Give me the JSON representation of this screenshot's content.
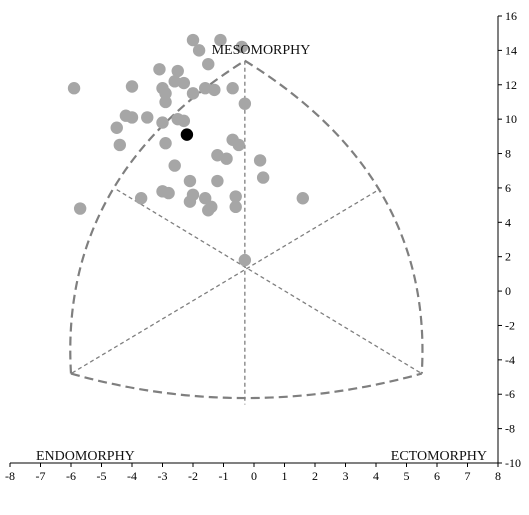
{
  "chart_data": {
    "type": "scatter",
    "title": "",
    "xlabel": "",
    "ylabel": "",
    "xlim": [
      -8,
      8
    ],
    "ylim": [
      -10,
      16
    ],
    "x_ticks": [
      -8,
      -7,
      -6,
      -5,
      -4,
      -3,
      -2,
      -1,
      0,
      1,
      2,
      3,
      4,
      5,
      6,
      7,
      8
    ],
    "y_ticks": [
      -10,
      -8,
      -6,
      -4,
      -2,
      0,
      2,
      4,
      6,
      8,
      10,
      12,
      14,
      16
    ],
    "grid": false,
    "legend": "none",
    "region_labels": {
      "top": "MESOMORPHY",
      "left": "ENDOMORPHY",
      "right": "ECTOMORPHY"
    },
    "somatochart": {
      "vertices": {
        "top": [
          -0.3,
          13.4
        ],
        "left": [
          -6.0,
          -4.8
        ],
        "right": [
          5.5,
          -4.8
        ]
      },
      "center": [
        -0.3,
        1.3
      ],
      "bottom": [
        -0.3,
        -6.6
      ],
      "upper_left": [
        -4.5,
        5.9
      ],
      "upper_right": [
        4.0,
        5.8
      ],
      "outline_color": "#7f7f7f",
      "divider_color": "#7f7f7f"
    },
    "series": [
      {
        "color": "#a6a6a6",
        "points": [
          [
            -2.0,
            14.6
          ],
          [
            -1.1,
            14.6
          ],
          [
            -1.8,
            14.0
          ],
          [
            -0.4,
            14.2
          ],
          [
            -1.5,
            13.2
          ],
          [
            -3.1,
            12.9
          ],
          [
            -2.5,
            12.8
          ],
          [
            -5.9,
            11.8
          ],
          [
            -4.0,
            11.9
          ],
          [
            -3.0,
            11.8
          ],
          [
            -2.6,
            12.2
          ],
          [
            -2.3,
            12.1
          ],
          [
            -2.9,
            11.5
          ],
          [
            -1.6,
            11.8
          ],
          [
            -1.3,
            11.7
          ],
          [
            -0.7,
            11.8
          ],
          [
            -2.0,
            11.5
          ],
          [
            -0.3,
            10.9
          ],
          [
            -2.9,
            11.0
          ],
          [
            -4.2,
            10.2
          ],
          [
            -4.0,
            10.1
          ],
          [
            -3.5,
            10.1
          ],
          [
            -2.5,
            10.0
          ],
          [
            -2.3,
            9.9
          ],
          [
            -3.0,
            9.8
          ],
          [
            -4.5,
            9.5
          ],
          [
            -0.7,
            8.8
          ],
          [
            -0.5,
            8.5
          ],
          [
            -4.4,
            8.5
          ],
          [
            -2.9,
            8.6
          ],
          [
            -1.2,
            7.9
          ],
          [
            -0.9,
            7.7
          ],
          [
            0.2,
            7.6
          ],
          [
            -2.6,
            7.3
          ],
          [
            0.3,
            6.6
          ],
          [
            -2.1,
            6.4
          ],
          [
            -1.2,
            6.4
          ],
          [
            -5.7,
            4.8
          ],
          [
            -3.7,
            5.4
          ],
          [
            -3.0,
            5.8
          ],
          [
            -2.8,
            5.7
          ],
          [
            -2.0,
            5.6
          ],
          [
            -1.6,
            5.4
          ],
          [
            -2.1,
            5.2
          ],
          [
            -0.6,
            5.5
          ],
          [
            -0.6,
            4.9
          ],
          [
            -1.4,
            4.9
          ],
          [
            -1.5,
            4.7
          ],
          [
            1.6,
            5.4
          ],
          [
            -0.3,
            1.8
          ]
        ]
      },
      {
        "color": "#000000",
        "points": [
          [
            -2.2,
            9.1
          ]
        ]
      }
    ]
  }
}
